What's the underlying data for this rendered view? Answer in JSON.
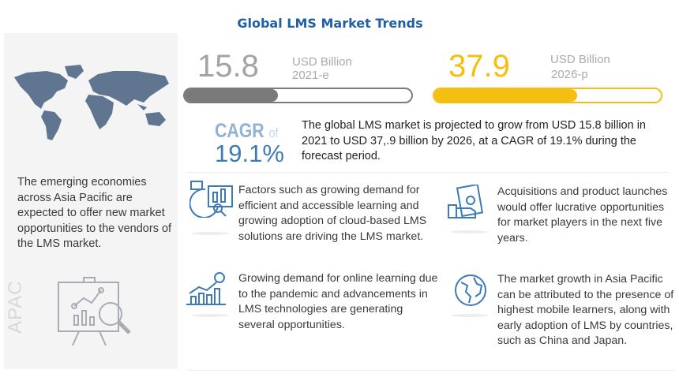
{
  "title": "Global LMS Market Trends",
  "colors": {
    "title": "#1f5fa8",
    "grey_bar": "#7a7a7a",
    "yellow": "#f5bf12",
    "icon_blue": "#3d7ab8",
    "map": "#5f7590"
  },
  "market_2021": {
    "value": "15.8",
    "unit": "USD Billion",
    "year": "2021-e",
    "bar_fill_percent": 41
  },
  "market_2026": {
    "value": "37.9",
    "unit": "USD Billion",
    "year": "2026-p",
    "bar_fill_percent": 63
  },
  "cagr": {
    "label": "CAGR",
    "of": "of",
    "value": "19.1%"
  },
  "summary": "The global LMS market is projected to grow from USD 15.8 billion in 2021 to USD 37,.9 billion by 2026, at a CAGR of 19.1% during the forecast period.",
  "apac": {
    "label": "APAC",
    "text": "The emerging economies across Asia Pacific are expected to offer new market opportunities to the vendors of the LMS market."
  },
  "points": [
    {
      "icon": "analytics-icon",
      "text": "Factors such as growing demand for efficient and accessible learning and growing adoption of cloud-based LMS solutions are driving the LMS market."
    },
    {
      "icon": "growth-chart-icon",
      "text": "Growing demand for online learning due to the pandemic and advancements in LMS technologies are generating several opportunities."
    },
    {
      "icon": "money-hand-icon",
      "text": "Acquisitions and product launches would offer lucrative opportunities for market players in the next five years."
    },
    {
      "icon": "globe-icon",
      "text": "The market growth in Asia Pacific can be attributed to the presence of highest mobile learners, along with early adoption of LMS by countries, such as China and Japan."
    }
  ]
}
